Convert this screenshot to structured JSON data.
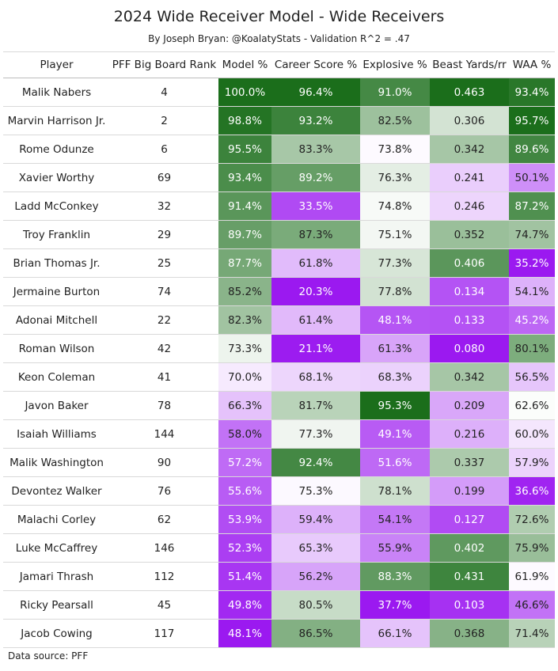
{
  "title": "2024 Wide Receiver Model - Wide Receivers",
  "subtitle": "By Joseph Bryan: @KoalatyStats - Validation R^2 = .47",
  "footer": "Data source: PFF",
  "colors": {
    "green_dark": "#1b6e1b",
    "white": "#ffffff",
    "purple_dark": "#9b19f0"
  },
  "chart_data": {
    "type": "table",
    "columns": [
      "Player",
      "PFF Big Board Rank",
      "Model %",
      "Career Score %",
      "Explosive %",
      "Beast Yards/rr",
      "WAA %"
    ],
    "rows": [
      {
        "player": "Malik Nabers",
        "rank": "4",
        "model": "100.0%",
        "career": "96.4%",
        "explosive": "91.0%",
        "beast": "0.463",
        "waa": "93.4%"
      },
      {
        "player": "Marvin Harrison Jr.",
        "rank": "2",
        "model": "98.8%",
        "career": "93.2%",
        "explosive": "82.5%",
        "beast": "0.306",
        "waa": "95.7%"
      },
      {
        "player": "Rome Odunze",
        "rank": "6",
        "model": "95.5%",
        "career": "83.3%",
        "explosive": "73.8%",
        "beast": "0.342",
        "waa": "89.6%"
      },
      {
        "player": "Xavier Worthy",
        "rank": "69",
        "model": "93.4%",
        "career": "89.2%",
        "explosive": "76.3%",
        "beast": "0.241",
        "waa": "50.1%"
      },
      {
        "player": "Ladd McConkey",
        "rank": "32",
        "model": "91.4%",
        "career": "33.5%",
        "explosive": "74.8%",
        "beast": "0.246",
        "waa": "87.2%"
      },
      {
        "player": "Troy Franklin",
        "rank": "29",
        "model": "89.7%",
        "career": "87.3%",
        "explosive": "75.1%",
        "beast": "0.352",
        "waa": "74.7%"
      },
      {
        "player": "Brian Thomas Jr.",
        "rank": "25",
        "model": "87.7%",
        "career": "61.8%",
        "explosive": "77.3%",
        "beast": "0.406",
        "waa": "35.2%"
      },
      {
        "player": "Jermaine Burton",
        "rank": "74",
        "model": "85.2%",
        "career": "20.3%",
        "explosive": "77.8%",
        "beast": "0.134",
        "waa": "54.1%"
      },
      {
        "player": "Adonai Mitchell",
        "rank": "22",
        "model": "82.3%",
        "career": "61.4%",
        "explosive": "48.1%",
        "beast": "0.133",
        "waa": "45.2%"
      },
      {
        "player": "Roman Wilson",
        "rank": "42",
        "model": "73.3%",
        "career": "21.1%",
        "explosive": "61.3%",
        "beast": "0.080",
        "waa": "80.1%"
      },
      {
        "player": "Keon Coleman",
        "rank": "41",
        "model": "70.0%",
        "career": "68.1%",
        "explosive": "68.3%",
        "beast": "0.342",
        "waa": "56.5%"
      },
      {
        "player": "Javon Baker",
        "rank": "78",
        "model": "66.3%",
        "career": "81.7%",
        "explosive": "95.3%",
        "beast": "0.209",
        "waa": "62.6%"
      },
      {
        "player": "Isaiah Williams",
        "rank": "144",
        "model": "58.0%",
        "career": "77.3%",
        "explosive": "49.1%",
        "beast": "0.216",
        "waa": "60.0%"
      },
      {
        "player": "Malik Washington",
        "rank": "90",
        "model": "57.2%",
        "career": "92.4%",
        "explosive": "51.6%",
        "beast": "0.337",
        "waa": "57.9%"
      },
      {
        "player": "Devontez Walker",
        "rank": "76",
        "model": "55.6%",
        "career": "75.3%",
        "explosive": "78.1%",
        "beast": "0.199",
        "waa": "36.6%"
      },
      {
        "player": "Malachi Corley",
        "rank": "62",
        "model": "53.9%",
        "career": "59.4%",
        "explosive": "54.1%",
        "beast": "0.127",
        "waa": "72.6%"
      },
      {
        "player": "Luke McCaffrey",
        "rank": "146",
        "model": "52.3%",
        "career": "65.3%",
        "explosive": "55.9%",
        "beast": "0.402",
        "waa": "75.9%"
      },
      {
        "player": "Jamari Thrash",
        "rank": "112",
        "model": "51.4%",
        "career": "56.2%",
        "explosive": "88.3%",
        "beast": "0.431",
        "waa": "61.9%"
      },
      {
        "player": "Ricky Pearsall",
        "rank": "45",
        "model": "49.8%",
        "career": "80.5%",
        "explosive": "37.7%",
        "beast": "0.103",
        "waa": "46.6%"
      },
      {
        "player": "Jacob Cowing",
        "rank": "117",
        "model": "48.1%",
        "career": "86.5%",
        "explosive": "66.1%",
        "beast": "0.368",
        "waa": "71.4%"
      }
    ]
  }
}
